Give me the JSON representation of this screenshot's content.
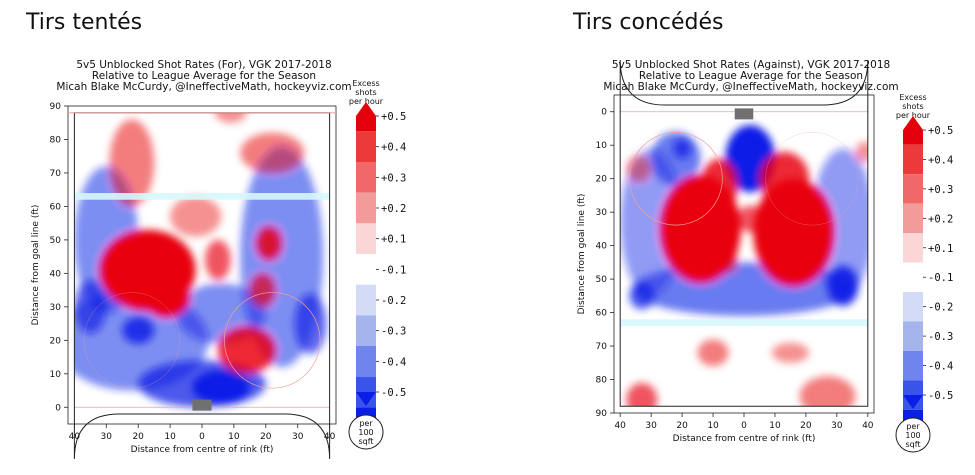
{
  "colors": {
    "high": "#e8000b",
    "mid_high": "#f5a3a3",
    "neutral": "#ffffff",
    "mid_low": "#9fb0ee",
    "low": "#0a1fe6",
    "cyan_line": "#d6f8fb",
    "red_line": "#f0a0a0",
    "net": "#707070"
  },
  "chart_data": [
    {
      "type": "heatmap",
      "heading": "Tirs tentés",
      "title": [
        "5v5 Unblocked Shot Rates (For), VGK 2017-2018",
        "Relative to League Average for the Season",
        "Micah Blake McCurdy, @IneffectiveMath, hockeyviz.com"
      ],
      "xlabel": "Distance from centre of rink (ft)",
      "ylabel": "Distance from goal line (ft)",
      "xlim": [
        -42,
        42
      ],
      "ylim": [
        90,
        -5
      ],
      "x_ticks": [
        "40",
        "30",
        "20",
        "10",
        "0",
        "10",
        "20",
        "30",
        "40"
      ],
      "y_ticks": [
        "0",
        "10",
        "20",
        "30",
        "40",
        "50",
        "60",
        "70",
        "80",
        "90"
      ],
      "colorbar": {
        "title": [
          "Excess",
          "shots",
          "per hour"
        ],
        "ticks": [
          "+0.5",
          "+0.4",
          "+0.3",
          "+0.2",
          "+0.1",
          "-0.1",
          "-0.2",
          "-0.3",
          "-0.4",
          "-0.5"
        ],
        "units": [
          "per",
          "100",
          "sqft"
        ]
      },
      "blobs": [
        {
          "x": -22,
          "y": 20,
          "rx": 24,
          "ry": 15,
          "v": -0.2
        },
        {
          "x": 25,
          "y": 45,
          "rx": 13,
          "ry": 33,
          "v": -0.2
        },
        {
          "x": -30,
          "y": 50,
          "rx": 10,
          "ry": 22,
          "v": -0.2
        },
        {
          "x": 6,
          "y": 28,
          "rx": 14,
          "ry": 9,
          "v": -0.2
        },
        {
          "x": 0,
          "y": 7,
          "rx": 20,
          "ry": 7,
          "v": -0.35
        },
        {
          "x": 6,
          "y": 6,
          "rx": 9,
          "ry": 5,
          "v": -0.5
        },
        {
          "x": -35,
          "y": 30,
          "rx": 5,
          "ry": 8,
          "v": -0.3
        },
        {
          "x": 34,
          "y": 25,
          "rx": 5,
          "ry": 9,
          "v": -0.3
        },
        {
          "x": -20,
          "y": 23,
          "rx": 5,
          "ry": 4,
          "v": -0.4
        },
        {
          "x": -17,
          "y": 41,
          "rx": 15,
          "ry": 12,
          "v": 0.5
        },
        {
          "x": -11,
          "y": 33,
          "rx": 7,
          "ry": 6,
          "v": 0.5
        },
        {
          "x": 14,
          "y": 17,
          "rx": 9,
          "ry": 7,
          "v": 0.4
        },
        {
          "x": 21,
          "y": 49,
          "rx": 4,
          "ry": 5,
          "v": 0.4
        },
        {
          "x": 19,
          "y": 35,
          "rx": 4,
          "ry": 5,
          "v": 0.3
        },
        {
          "x": 5,
          "y": 44,
          "rx": 4,
          "ry": 6,
          "v": 0.3
        },
        {
          "x": -22,
          "y": 73,
          "rx": 7,
          "ry": 13,
          "v": 0.2
        },
        {
          "x": 22,
          "y": 76,
          "rx": 10,
          "ry": 6,
          "v": 0.2
        },
        {
          "x": 9,
          "y": 88,
          "rx": 5,
          "ry": 3,
          "v": 0.15
        },
        {
          "x": -2,
          "y": 57,
          "rx": 8,
          "ry": 6,
          "v": 0.15
        }
      ]
    },
    {
      "type": "heatmap",
      "heading": "Tirs concédés",
      "title": [
        "5v5 Unblocked Shot Rates (Against), VGK 2017-2018",
        "Relative to League Average for the Season",
        "Micah Blake McCurdy, @IneffectiveMath, hockeyviz.com"
      ],
      "xlabel": "Distance from centre of rink (ft)",
      "ylabel": "Distance from goal line (ft)",
      "xlim": [
        -42,
        42
      ],
      "ylim": [
        -5,
        90
      ],
      "x_ticks": [
        "40",
        "30",
        "20",
        "10",
        "0",
        "10",
        "20",
        "30",
        "40"
      ],
      "y_ticks": [
        "0",
        "10",
        "20",
        "30",
        "40",
        "50",
        "60",
        "70",
        "80",
        "90"
      ],
      "colorbar": {
        "title": [
          "Excess",
          "shots",
          "per hour"
        ],
        "ticks": [
          "+0.5",
          "+0.4",
          "+0.3",
          "+0.2",
          "+0.1",
          "-0.1",
          "-0.2",
          "-0.3",
          "-0.4",
          "-0.5"
        ],
        "units": [
          "per",
          "100",
          "sqft"
        ]
      },
      "blobs": [
        {
          "x": 0,
          "y": 53,
          "rx": 36,
          "ry": 8,
          "v": -0.25
        },
        {
          "x": -30,
          "y": 33,
          "rx": 10,
          "ry": 22,
          "v": -0.15
        },
        {
          "x": 32,
          "y": 33,
          "rx": 10,
          "ry": 22,
          "v": -0.15
        },
        {
          "x": -22,
          "y": 14,
          "rx": 8,
          "ry": 8,
          "v": -0.25
        },
        {
          "x": 32,
          "y": 52,
          "rx": 5,
          "ry": 6,
          "v": -0.45
        },
        {
          "x": -33,
          "y": 55,
          "rx": 4,
          "ry": 4,
          "v": -0.35
        },
        {
          "x": -20,
          "y": 11,
          "rx": 3,
          "ry": 3,
          "v": -0.35
        },
        {
          "x": 2,
          "y": 14,
          "rx": 8,
          "ry": 10,
          "v": -0.5
        },
        {
          "x": -14,
          "y": 35,
          "rx": 13,
          "ry": 16,
          "v": 0.5
        },
        {
          "x": 16,
          "y": 36,
          "rx": 13,
          "ry": 16,
          "v": 0.5
        },
        {
          "x": -8,
          "y": 22,
          "rx": 6,
          "ry": 8,
          "v": 0.4
        },
        {
          "x": 13,
          "y": 20,
          "rx": 8,
          "ry": 8,
          "v": 0.4
        },
        {
          "x": 2,
          "y": 32,
          "rx": 4,
          "ry": 4,
          "v": 0.3
        },
        {
          "x": -33,
          "y": 86,
          "rx": 5,
          "ry": 5,
          "v": 0.3
        },
        {
          "x": 27,
          "y": 85,
          "rx": 9,
          "ry": 6,
          "v": 0.2
        },
        {
          "x": -10,
          "y": 72,
          "rx": 5,
          "ry": 4,
          "v": 0.2
        },
        {
          "x": 15,
          "y": 72,
          "rx": 6,
          "ry": 3,
          "v": 0.15
        },
        {
          "x": -34,
          "y": 17,
          "rx": 4,
          "ry": 4,
          "v": 0.15
        },
        {
          "x": 39,
          "y": 12,
          "rx": 3,
          "ry": 3,
          "v": 0.15
        },
        {
          "x": -5,
          "y": 44,
          "rx": 3,
          "ry": 4,
          "v": 0.2
        }
      ]
    }
  ]
}
